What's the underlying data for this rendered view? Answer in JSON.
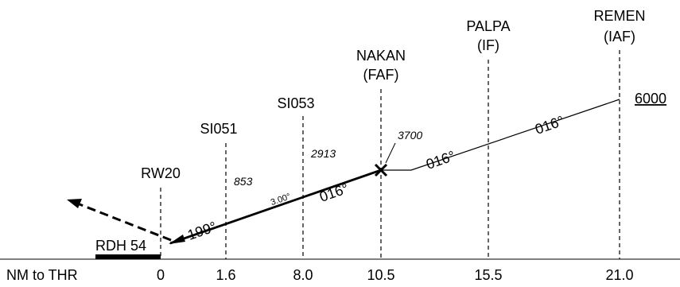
{
  "fixes": [
    {
      "id": "rw20",
      "name": "RW20",
      "dist": "0",
      "alt": ""
    },
    {
      "id": "si051",
      "name": "SI051",
      "dist": "1.6",
      "alt": "853"
    },
    {
      "id": "si053",
      "name": "SI053",
      "dist": "8.0",
      "alt": "2913"
    },
    {
      "id": "nakan",
      "name": "NAKAN",
      "role": "(FAF)",
      "dist": "10.5",
      "alt": "3700"
    },
    {
      "id": "palpa",
      "name": "PALPA",
      "role": "(IF)",
      "dist": "15.5",
      "alt": ""
    },
    {
      "id": "remen",
      "name": "REMEN",
      "role": "(IAF)",
      "dist": "21.0",
      "alt": ""
    }
  ],
  "axis_label": "NM to THR",
  "rdh_label": "RDH 54",
  "glide_angle": "3.00°",
  "courses": {
    "final": "016°",
    "intermediate": "016°",
    "initial": "016°",
    "missed": "199°"
  },
  "initial_altitude": "6000"
}
